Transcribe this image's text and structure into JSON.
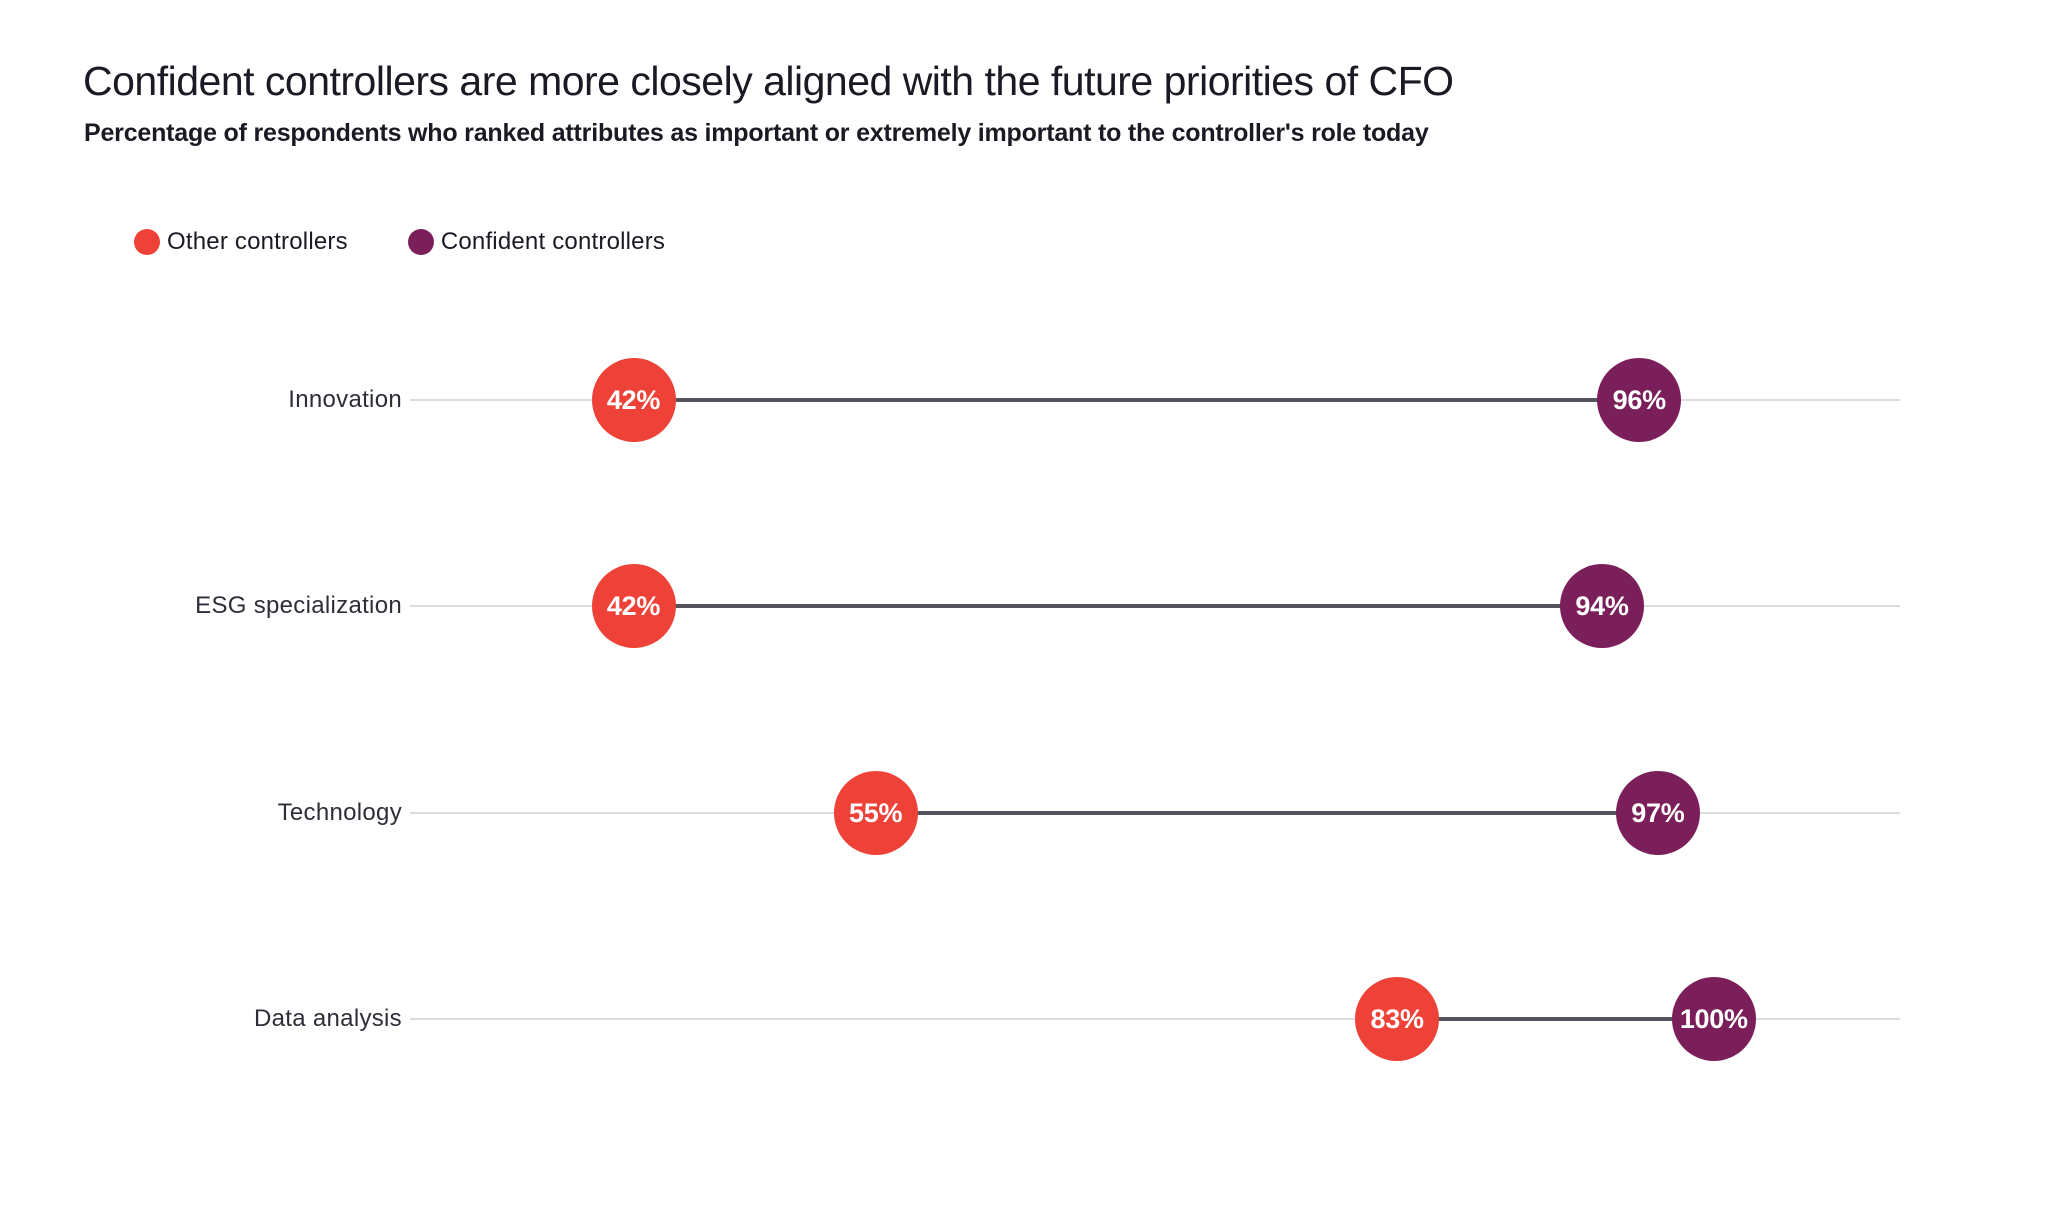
{
  "title": "Confident controllers are more closely aligned with the future priorities of CFO",
  "subtitle": "Percentage of respondents who ranked attributes as important or extremely important to the controller's role today",
  "legend": [
    {
      "label": "Other controllers",
      "color": "#ee4238"
    },
    {
      "label": "Confident controllers",
      "color": "#7a1f5a"
    }
  ],
  "colors": {
    "other_controllers": "#ee4238",
    "confident_controllers": "#7a1f5a",
    "connector_line": "#54545f",
    "track_line": "#dcdce0",
    "text": "#1a1a24"
  },
  "chart_data": {
    "type": "scatter",
    "variant": "dumbbell",
    "title": "Confident controllers are more closely aligned with the future priorities of CFO",
    "subtitle": "Percentage of respondents who ranked attributes as important or extremely important to the controller's role today",
    "categories": [
      "Innovation",
      "ESG specialization",
      "Technology",
      "Data analysis"
    ],
    "series": [
      {
        "name": "Other controllers",
        "color": "#ee4238",
        "values": [
          42,
          42,
          55,
          83
        ],
        "labels": [
          "42%",
          "42%",
          "55%",
          "83%"
        ]
      },
      {
        "name": "Confident controllers",
        "color": "#7a1f5a",
        "values": [
          96,
          94,
          97,
          100
        ],
        "labels": [
          "96%",
          "94%",
          "97%",
          "100%"
        ]
      }
    ],
    "value_suffix": "%",
    "axis_range": [
      30,
      110
    ],
    "grid": false,
    "legend_position": "top-left",
    "xlabel": "",
    "ylabel": ""
  }
}
